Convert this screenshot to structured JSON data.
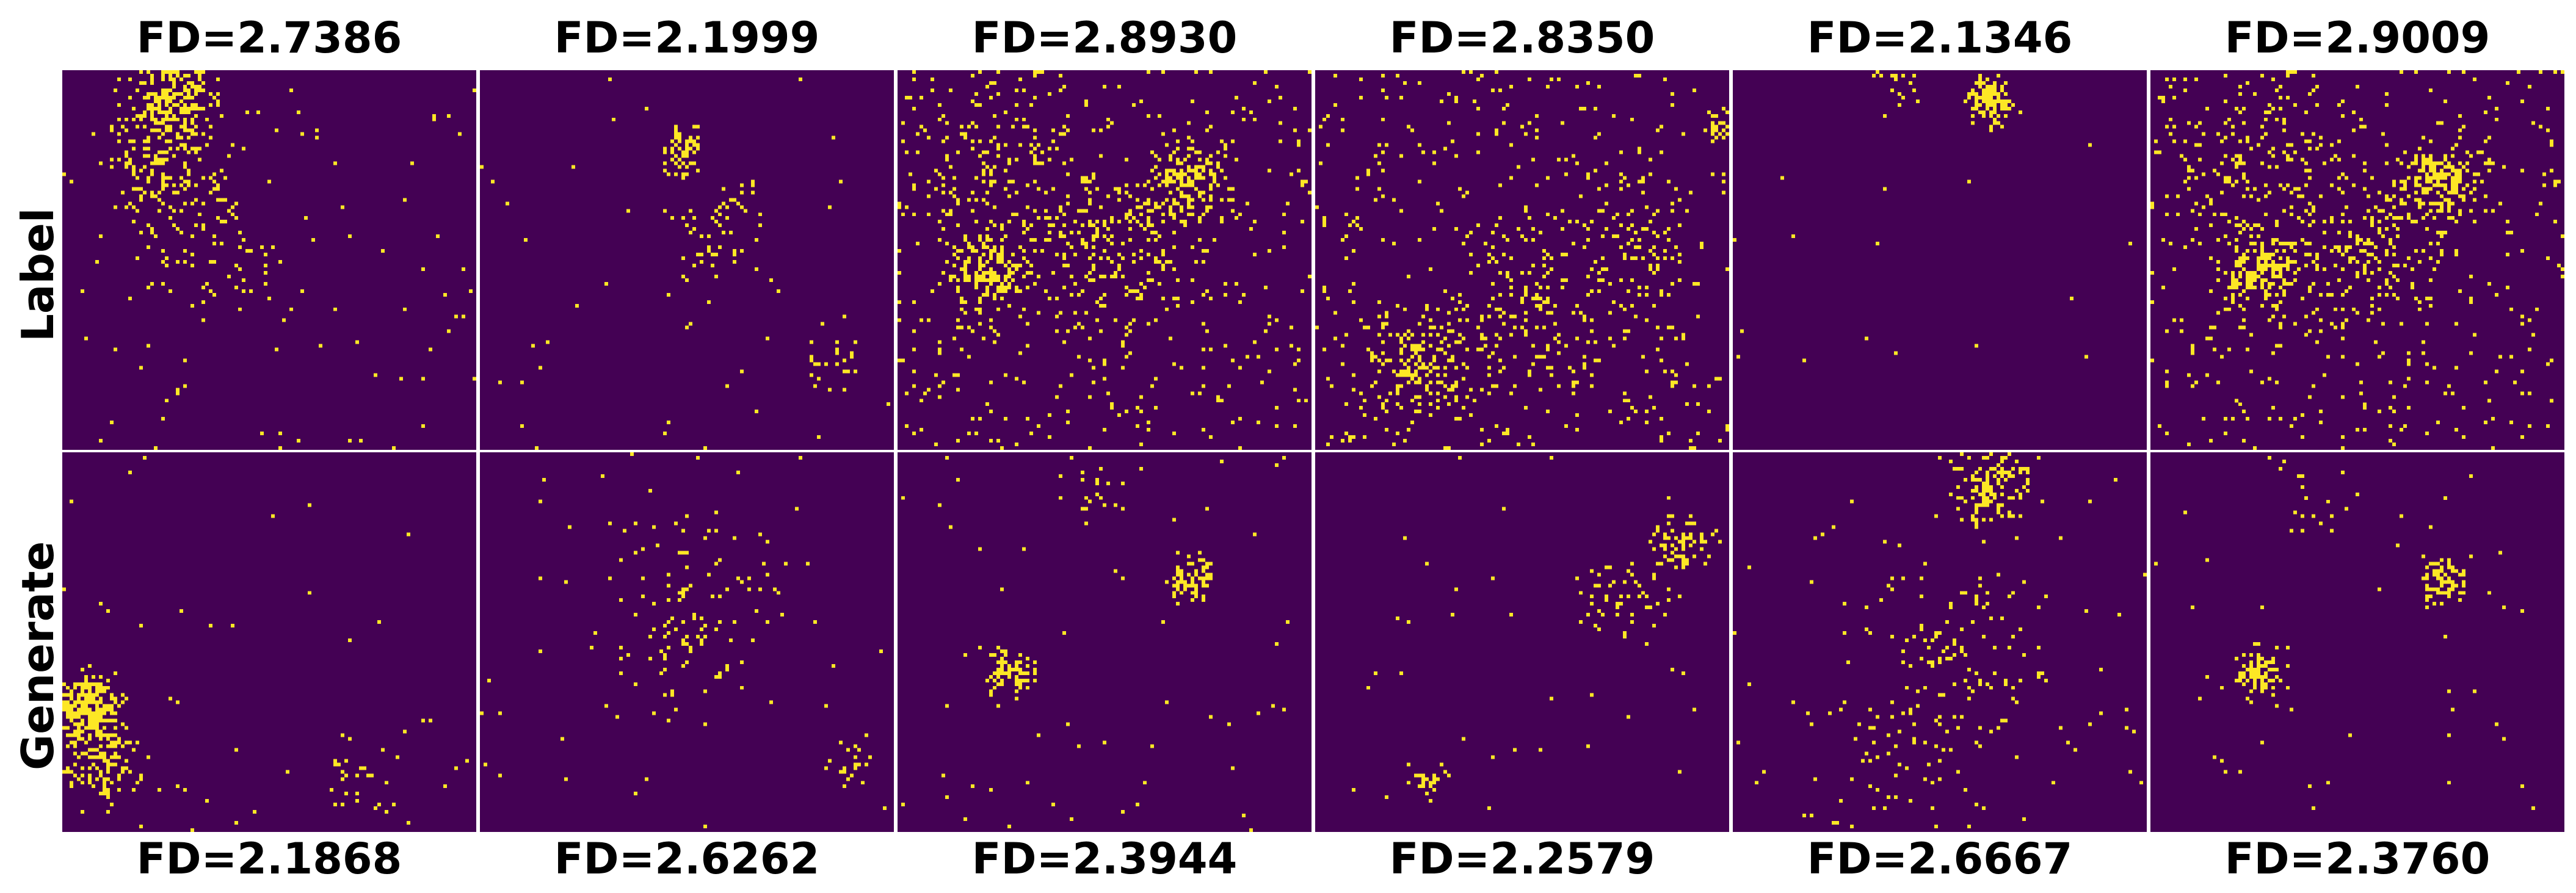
{
  "row_labels": {
    "top": "Label",
    "bottom": "Generate"
  },
  "colors": {
    "background": "#440154",
    "highlight": "#fde725"
  },
  "top_row": {
    "fd": [
      "FD=2.7386",
      "FD=2.1999",
      "FD=2.8930",
      "FD=2.8350",
      "FD=2.1346",
      "FD=2.9009"
    ]
  },
  "bottom_row": {
    "fd": [
      "FD=2.1868",
      "FD=2.6262",
      "FD=2.3944",
      "FD=2.2579",
      "FD=2.6667",
      "FD=2.3760"
    ]
  }
}
